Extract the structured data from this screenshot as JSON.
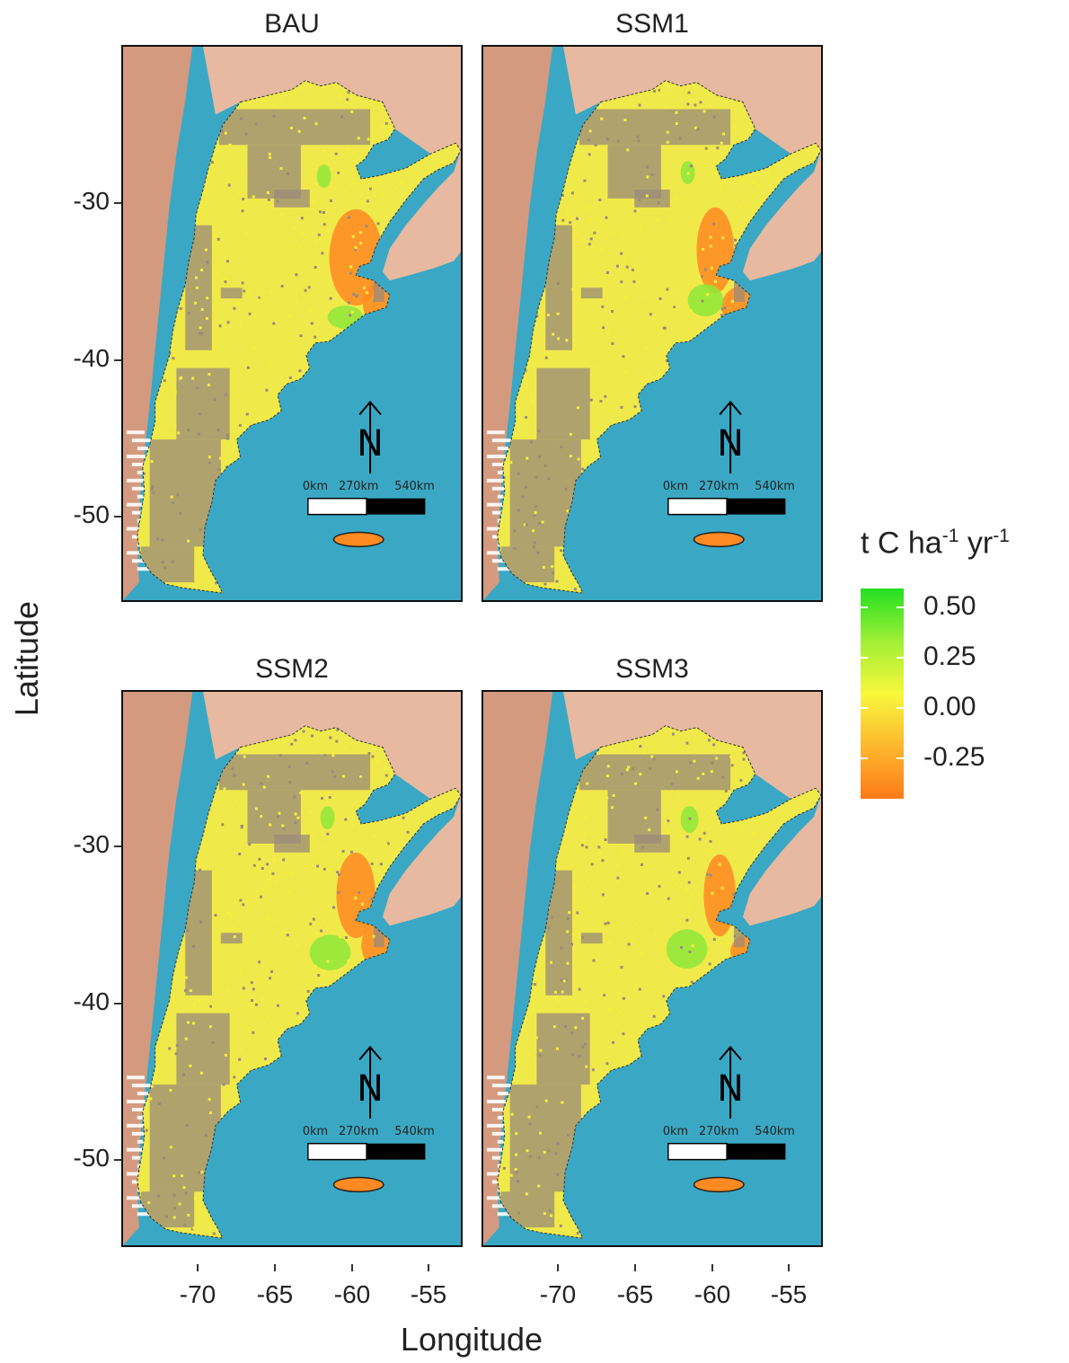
{
  "panels": [
    {
      "title": "BAU"
    },
    {
      "title": "SSM1"
    },
    {
      "title": "SSM2"
    },
    {
      "title": "SSM3"
    }
  ],
  "axes": {
    "x_title": "Longitude",
    "y_title": "Latitude",
    "x_ticks": [
      "-70",
      "-65",
      "-60",
      "-55"
    ],
    "y_ticks": [
      "-30",
      "-40",
      "-50"
    ]
  },
  "scalebar": {
    "labels": [
      "0km",
      "270km",
      "540km"
    ]
  },
  "north_arrow": {
    "label": "N"
  },
  "legend": {
    "title_main": "t C  ha",
    "title_exp1": "-1",
    "title_yr": " yr",
    "title_exp2": "-1",
    "labels": [
      "0.50",
      "0.25",
      "0.00",
      "-0.25"
    ],
    "colors": {
      "high": "#22e022",
      "mid": "#f8f83c",
      "low": "#ff7a1a"
    }
  },
  "colors": {
    "ocean": "#3aa8c4",
    "land_neighbor": "#e6b9a0",
    "no_data": "#9a8a7a",
    "ice": "#ffffff"
  }
}
